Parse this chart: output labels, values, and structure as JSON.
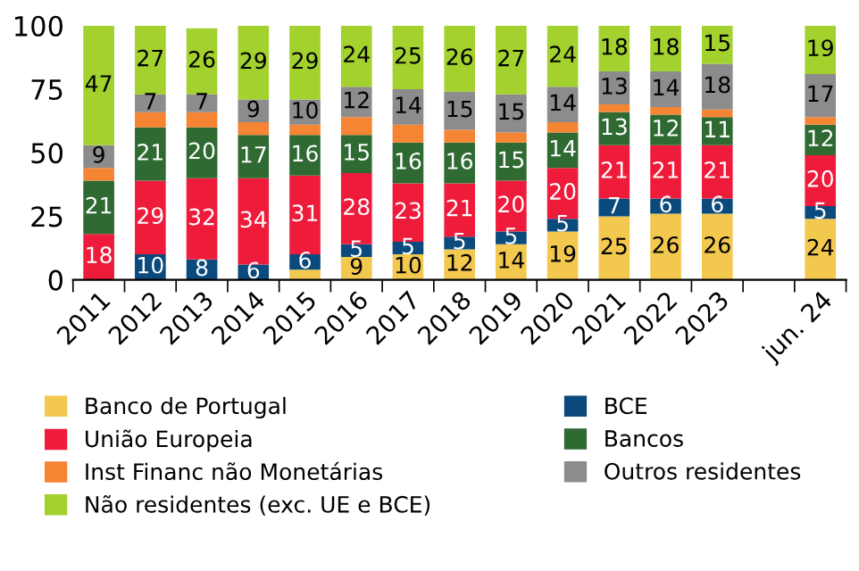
{
  "chart_data": {
    "type": "bar",
    "stacked": true,
    "categories": [
      "2011",
      "2012",
      "2013",
      "2014",
      "2015",
      "2016",
      "2017",
      "2018",
      "2019",
      "2020",
      "2021",
      "2022",
      "2023",
      null,
      "jun. 24"
    ],
    "series": [
      {
        "name": "Banco de Portugal",
        "color": "#f2c84f",
        "values": [
          0,
          0,
          0,
          0,
          4,
          9,
          10,
          12,
          14,
          19,
          25,
          26,
          26,
          null,
          24
        ],
        "value_labels": [
          null,
          null,
          null,
          null,
          null,
          "9",
          "10",
          "12",
          "14",
          "19",
          "25",
          "26",
          "26",
          null,
          "24"
        ]
      },
      {
        "name": "BCE",
        "color": "#0b4a7d",
        "values": [
          0,
          10,
          8,
          6,
          6,
          5,
          5,
          5,
          5,
          5,
          7,
          6,
          6,
          null,
          5
        ],
        "value_labels": [
          null,
          "10",
          "8",
          "6",
          "6",
          "5",
          "5",
          "5",
          "5",
          "5",
          "7",
          "6",
          "6",
          null,
          "5"
        ]
      },
      {
        "name": "União Europeia",
        "color": "#ee1b3b",
        "values": [
          18,
          29,
          32,
          34,
          31,
          28,
          23,
          21,
          20,
          20,
          21,
          21,
          21,
          null,
          20
        ],
        "value_labels": [
          "18",
          "29",
          "32",
          "34",
          "31",
          "28",
          "23",
          "21",
          "20",
          "20",
          "21",
          "21",
          "21",
          null,
          "20"
        ]
      },
      {
        "name": "Bancos",
        "color": "#2f6a32",
        "values": [
          21,
          21,
          20,
          17,
          16,
          15,
          16,
          16,
          15,
          14,
          13,
          12,
          11,
          null,
          12
        ],
        "value_labels": [
          "21",
          "21",
          "20",
          "17",
          "16",
          "15",
          "16",
          "16",
          "15",
          "14",
          "13",
          "12",
          "11",
          null,
          "12"
        ]
      },
      {
        "name": "Inst Financ não Monetárias",
        "color": "#f58433",
        "values": [
          5,
          6,
          6,
          5,
          4,
          7,
          7,
          5,
          4,
          4,
          3,
          3,
          3,
          null,
          3
        ],
        "value_labels": [
          null,
          null,
          null,
          null,
          null,
          null,
          null,
          null,
          null,
          null,
          null,
          null,
          null,
          null,
          null
        ]
      },
      {
        "name": "Outros residentes",
        "color": "#8c8c8c",
        "values": [
          9,
          7,
          7,
          9,
          10,
          12,
          14,
          15,
          15,
          14,
          13,
          14,
          18,
          null,
          17
        ],
        "value_labels": [
          "9",
          "7",
          "7",
          "9",
          "10",
          "12",
          "14",
          "15",
          "15",
          "14",
          "13",
          "14",
          "18",
          null,
          "17"
        ]
      },
      {
        "name": "Não residentes (exc. UE e BCE)",
        "color": "#a3d12d",
        "values": [
          47,
          27,
          26,
          29,
          29,
          24,
          25,
          26,
          27,
          24,
          18,
          18,
          15,
          null,
          19
        ],
        "value_labels": [
          "47",
          "27",
          "26",
          "29",
          "29",
          "24",
          "25",
          "26",
          "27",
          "24",
          "18",
          "18",
          "15",
          null,
          "19"
        ]
      }
    ],
    "ylim": [
      0,
      100
    ],
    "yticks": [
      0,
      25,
      50,
      75,
      100
    ],
    "grid": false,
    "legend": "bottom"
  }
}
